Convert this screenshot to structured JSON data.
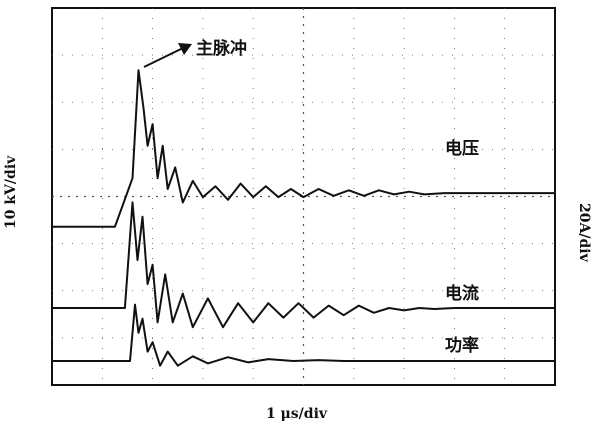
{
  "chart_data": {
    "type": "line",
    "annotation": "主脉冲",
    "xlabel": "1 μs/div",
    "ylabel_left": "10 kV/div",
    "ylabel_right": "20A/div",
    "xlim": [
      0,
      10
    ],
    "grid": true,
    "series": [
      {
        "name": "电压",
        "color": "#111111",
        "x": [
          0,
          1.25,
          1.6,
          1.72,
          1.82,
          1.9,
          2.0,
          2.1,
          2.2,
          2.3,
          2.45,
          2.6,
          2.8,
          3.0,
          3.25,
          3.5,
          3.75,
          4.0,
          4.25,
          4.5,
          4.75,
          5.0,
          5.3,
          5.6,
          5.9,
          6.2,
          6.5,
          6.8,
          7.1,
          7.4,
          7.8,
          8.2,
          10
        ],
        "values": [
          -2.4,
          -2.4,
          -0.6,
          3.4,
          2.0,
          0.6,
          1.4,
          -0.6,
          0.6,
          -1.0,
          -0.2,
          -1.5,
          -0.7,
          -1.3,
          -0.9,
          -1.4,
          -0.8,
          -1.3,
          -0.9,
          -1.3,
          -1.0,
          -1.3,
          -1.0,
          -1.25,
          -1.05,
          -1.25,
          -1.05,
          -1.2,
          -1.1,
          -1.2,
          -1.15,
          -1.15,
          -1.15
        ]
      },
      {
        "name": "电流",
        "color": "#111111",
        "x": [
          0,
          1.45,
          1.6,
          1.7,
          1.8,
          1.9,
          2.0,
          2.1,
          2.25,
          2.4,
          2.6,
          2.8,
          3.1,
          3.4,
          3.7,
          4.0,
          4.3,
          4.6,
          4.9,
          5.2,
          5.5,
          5.8,
          6.1,
          6.4,
          6.7,
          7.0,
          7.3,
          7.6,
          8.0,
          10
        ],
        "values": [
          0,
          0,
          2.2,
          1.0,
          1.9,
          0.5,
          0.9,
          -0.3,
          0.7,
          -0.3,
          0.3,
          -0.4,
          0.2,
          -0.4,
          0.1,
          -0.3,
          0.1,
          -0.2,
          0.1,
          -0.2,
          0.05,
          -0.15,
          0.05,
          -0.1,
          0.0,
          -0.05,
          0.0,
          -0.02,
          0.0,
          0.0
        ]
      },
      {
        "name": "功率",
        "color": "#111111",
        "x": [
          0,
          1.55,
          1.65,
          1.72,
          1.8,
          1.9,
          2.0,
          2.15,
          2.3,
          2.5,
          2.8,
          3.1,
          3.5,
          3.9,
          4.3,
          4.8,
          5.3,
          5.8,
          6.3,
          10
        ],
        "values": [
          0,
          0,
          1.2,
          0.6,
          0.9,
          0.2,
          0.4,
          -0.1,
          0.2,
          -0.1,
          0.1,
          -0.05,
          0.08,
          -0.03,
          0.04,
          0.0,
          0.02,
          0.0,
          0.0,
          0.0
        ]
      }
    ]
  }
}
